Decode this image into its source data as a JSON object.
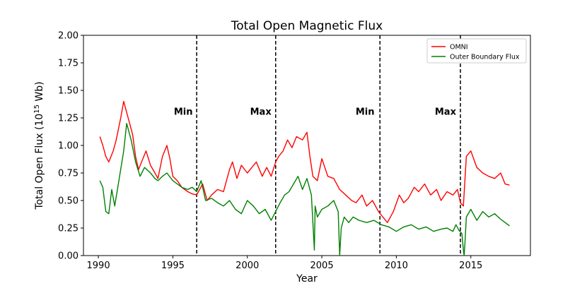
{
  "chart_data": {
    "type": "line",
    "title": "Total Open Magnetic Flux",
    "xlabel": "Year",
    "ylabel": "Total Open Flux (10",
    "ylabel_sup": "15",
    "ylabel_unit": " Wb)",
    "xlim": [
      1989,
      2019
    ],
    "ylim": [
      0,
      2.0
    ],
    "x_ticks": [
      1990,
      1995,
      2000,
      2005,
      2010,
      2015
    ],
    "x_tick_labels": [
      "1990",
      "1995",
      "2000",
      "2005",
      "2010",
      "2015"
    ],
    "y_ticks": [
      0,
      0.25,
      0.5,
      0.75,
      1.0,
      1.25,
      1.5,
      1.75,
      2.0
    ],
    "y_tick_labels": [
      "0.00",
      "0.25",
      "0.50",
      "0.75",
      "1.00",
      "1.25",
      "1.50",
      "1.75",
      "2.00"
    ],
    "grid": false,
    "legend_position": "top-right",
    "vlines": [
      1996.6,
      2001.9,
      2008.9,
      2014.3
    ],
    "annotations": [
      {
        "text": "Min",
        "x": 1995.7,
        "y": 1.28
      },
      {
        "text": "Max",
        "x": 2000.9,
        "y": 1.28
      },
      {
        "text": "Min",
        "x": 2007.9,
        "y": 1.28
      },
      {
        "text": "Max",
        "x": 2013.3,
        "y": 1.28
      }
    ],
    "series": [
      {
        "name": "OMNI",
        "color": "#ff0000",
        "x": [
          1990.1,
          1990.3,
          1990.5,
          1990.7,
          1991.0,
          1991.2,
          1991.5,
          1991.7,
          1991.9,
          1992.1,
          1992.3,
          1992.5,
          1992.7,
          1992.9,
          1993.2,
          1993.5,
          1993.8,
          1994.0,
          1994.3,
          1994.6,
          1994.8,
          1995.0,
          1995.3,
          1995.6,
          1996.0,
          1996.3,
          1996.6,
          1996.8,
          1997.0,
          1997.3,
          1997.6,
          1998.0,
          1998.4,
          1998.8,
          1999.0,
          1999.3,
          1999.6,
          2000.0,
          2000.3,
          2000.6,
          2001.0,
          2001.3,
          2001.6,
          2001.9,
          2002.1,
          2002.4,
          2002.7,
          2003.0,
          2003.3,
          2003.7,
          2004.0,
          2004.2,
          2004.4,
          2004.7,
          2005.0,
          2005.4,
          2005.8,
          2006.2,
          2006.6,
          2007.0,
          2007.3,
          2007.7,
          2008.0,
          2008.4,
          2008.8,
          2009.1,
          2009.4,
          2009.8,
          2010.2,
          2010.5,
          2010.8,
          2011.2,
          2011.5,
          2011.9,
          2012.3,
          2012.7,
          2013.0,
          2013.4,
          2013.8,
          2014.1,
          2014.3,
          2014.5,
          2014.7,
          2015.0,
          2015.4,
          2015.8,
          2016.2,
          2016.6,
          2017.0,
          2017.3,
          2017.6
        ],
        "y": [
          1.08,
          1.0,
          0.9,
          0.85,
          0.95,
          1.05,
          1.25,
          1.4,
          1.3,
          1.2,
          1.1,
          0.9,
          0.78,
          0.85,
          0.95,
          0.82,
          0.75,
          0.7,
          0.9,
          1.0,
          0.88,
          0.72,
          0.68,
          0.62,
          0.58,
          0.56,
          0.55,
          0.6,
          0.65,
          0.5,
          0.55,
          0.6,
          0.58,
          0.78,
          0.85,
          0.7,
          0.82,
          0.75,
          0.8,
          0.85,
          0.72,
          0.8,
          0.72,
          0.85,
          0.9,
          0.95,
          1.05,
          0.98,
          1.08,
          1.05,
          1.12,
          0.9,
          0.72,
          0.68,
          0.88,
          0.72,
          0.7,
          0.6,
          0.55,
          0.5,
          0.48,
          0.55,
          0.45,
          0.5,
          0.4,
          0.35,
          0.3,
          0.4,
          0.55,
          0.48,
          0.52,
          0.62,
          0.58,
          0.65,
          0.55,
          0.6,
          0.5,
          0.58,
          0.55,
          0.6,
          0.48,
          0.45,
          0.9,
          0.95,
          0.8,
          0.75,
          0.72,
          0.7,
          0.75,
          0.65,
          0.64
        ]
      },
      {
        "name": "Outer Boundary Flux",
        "color": "#008000",
        "x": [
          1990.1,
          1990.3,
          1990.5,
          1990.7,
          1990.9,
          1991.1,
          1991.4,
          1991.7,
          1991.9,
          1992.2,
          1992.5,
          1992.8,
          1993.1,
          1993.5,
          1993.8,
          1994.0,
          1994.3,
          1994.6,
          1995.0,
          1995.3,
          1995.6,
          1996.0,
          1996.3,
          1996.6,
          1996.9,
          1997.2,
          1997.6,
          1998.0,
          1998.4,
          1998.8,
          1999.2,
          1999.6,
          2000.0,
          2000.4,
          2000.8,
          2001.2,
          2001.6,
          2001.9,
          2002.2,
          2002.5,
          2002.8,
          2003.1,
          2003.4,
          2003.7,
          2004.0,
          2004.3,
          2004.5,
          2004.55,
          2004.7,
          2005.0,
          2005.4,
          2005.8,
          2006.1,
          2006.2,
          2006.3,
          2006.5,
          2006.8,
          2007.1,
          2007.5,
          2008.0,
          2008.5,
          2009.0,
          2009.5,
          2010.0,
          2010.5,
          2011.0,
          2011.5,
          2012.0,
          2012.5,
          2013.0,
          2013.4,
          2013.8,
          2014.0,
          2014.2,
          2014.4,
          2014.5,
          2014.55,
          2014.6,
          2014.7,
          2015.0,
          2015.4,
          2015.8,
          2016.2,
          2016.6,
          2017.0,
          2017.3,
          2017.6
        ],
        "y": [
          0.68,
          0.62,
          0.4,
          0.38,
          0.6,
          0.45,
          0.7,
          0.95,
          1.2,
          1.05,
          0.85,
          0.72,
          0.8,
          0.75,
          0.7,
          0.68,
          0.72,
          0.75,
          0.68,
          0.65,
          0.62,
          0.6,
          0.62,
          0.58,
          0.68,
          0.5,
          0.52,
          0.48,
          0.45,
          0.5,
          0.42,
          0.38,
          0.5,
          0.45,
          0.38,
          0.42,
          0.32,
          0.4,
          0.48,
          0.55,
          0.58,
          0.65,
          0.72,
          0.6,
          0.7,
          0.55,
          0.05,
          0.45,
          0.35,
          0.42,
          0.45,
          0.5,
          0.4,
          0.0,
          0.25,
          0.35,
          0.3,
          0.35,
          0.32,
          0.3,
          0.32,
          0.28,
          0.26,
          0.22,
          0.26,
          0.28,
          0.24,
          0.26,
          0.22,
          0.24,
          0.25,
          0.22,
          0.28,
          0.23,
          0.2,
          0.05,
          0.0,
          0.1,
          0.35,
          0.42,
          0.32,
          0.4,
          0.35,
          0.38,
          0.33,
          0.3,
          0.27
        ]
      }
    ]
  }
}
